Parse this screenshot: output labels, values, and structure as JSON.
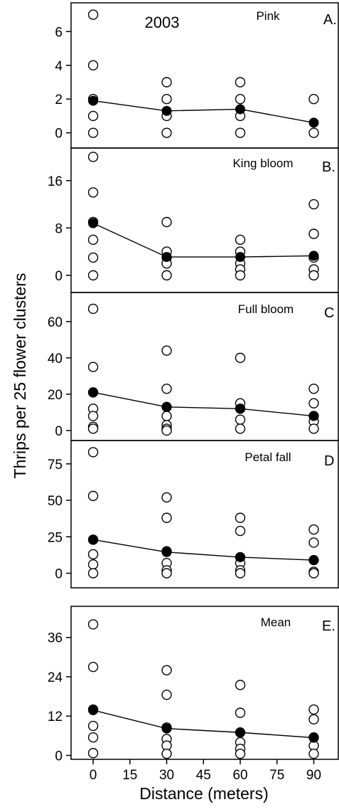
{
  "chart_data": {
    "type": "scatter",
    "year_label": "2003",
    "ylabel": "Thrips per 25 flower clusters",
    "xlabel": "Distance (meters)",
    "x_ticks": [
      0,
      15,
      30,
      45,
      60,
      75,
      90
    ],
    "xlim": [
      -9,
      100
    ],
    "panels": [
      {
        "title": "Pink",
        "letter": "A.",
        "ylim": [
          -0.9,
          7.7
        ],
        "y_ticks": [
          0,
          2,
          4,
          6
        ],
        "observations": [
          {
            "x": 0,
            "y": 7
          },
          {
            "x": 0,
            "y": 4
          },
          {
            "x": 0,
            "y": 2
          },
          {
            "x": 0,
            "y": 1
          },
          {
            "x": 0,
            "y": 0
          },
          {
            "x": 30,
            "y": 3
          },
          {
            "x": 30,
            "y": 2
          },
          {
            "x": 30,
            "y": 1
          },
          {
            "x": 30,
            "y": 0
          },
          {
            "x": 60,
            "y": 3
          },
          {
            "x": 60,
            "y": 2
          },
          {
            "x": 60,
            "y": 1
          },
          {
            "x": 60,
            "y": 0
          },
          {
            "x": 90,
            "y": 2
          },
          {
            "x": 90,
            "y": 0
          }
        ],
        "mean": {
          "x": [
            0,
            30,
            60,
            90
          ],
          "y": [
            1.9,
            1.3,
            1.4,
            0.6
          ]
        }
      },
      {
        "title": "King bloom",
        "letter": "B.",
        "ylim": [
          -2.9,
          21.5
        ],
        "y_ticks": [
          0,
          8,
          16
        ],
        "observations": [
          {
            "x": 0,
            "y": 20
          },
          {
            "x": 0,
            "y": 14
          },
          {
            "x": 0,
            "y": 9
          },
          {
            "x": 0,
            "y": 6
          },
          {
            "x": 0,
            "y": 3
          },
          {
            "x": 0,
            "y": 0
          },
          {
            "x": 30,
            "y": 9
          },
          {
            "x": 30,
            "y": 4
          },
          {
            "x": 30,
            "y": 3
          },
          {
            "x": 30,
            "y": 2
          },
          {
            "x": 30,
            "y": 0
          },
          {
            "x": 60,
            "y": 6
          },
          {
            "x": 60,
            "y": 4
          },
          {
            "x": 60,
            "y": 2
          },
          {
            "x": 60,
            "y": 1
          },
          {
            "x": 60,
            "y": 0
          },
          {
            "x": 90,
            "y": 12
          },
          {
            "x": 90,
            "y": 7
          },
          {
            "x": 90,
            "y": 3
          },
          {
            "x": 90,
            "y": 1
          },
          {
            "x": 90,
            "y": 0
          }
        ],
        "mean": {
          "x": [
            0,
            30,
            60,
            90
          ],
          "y": [
            8.8,
            3.1,
            3.1,
            3.3
          ]
        }
      },
      {
        "title": "Full bloom",
        "letter": "C",
        "ylim": [
          -5.5,
          76
        ],
        "y_ticks": [
          0,
          20,
          40,
          60
        ],
        "observations": [
          {
            "x": 0,
            "y": 67
          },
          {
            "x": 0,
            "y": 35
          },
          {
            "x": 0,
            "y": 21
          },
          {
            "x": 0,
            "y": 12
          },
          {
            "x": 0,
            "y": 8
          },
          {
            "x": 0,
            "y": 2
          },
          {
            "x": 0,
            "y": 1
          },
          {
            "x": 30,
            "y": 44
          },
          {
            "x": 30,
            "y": 23
          },
          {
            "x": 30,
            "y": 13
          },
          {
            "x": 30,
            "y": 8
          },
          {
            "x": 30,
            "y": 3
          },
          {
            "x": 30,
            "y": 1
          },
          {
            "x": 30,
            "y": 0
          },
          {
            "x": 60,
            "y": 40
          },
          {
            "x": 60,
            "y": 15
          },
          {
            "x": 60,
            "y": 12
          },
          {
            "x": 60,
            "y": 6
          },
          {
            "x": 60,
            "y": 1
          },
          {
            "x": 90,
            "y": 23
          },
          {
            "x": 90,
            "y": 15
          },
          {
            "x": 90,
            "y": 8
          },
          {
            "x": 90,
            "y": 5
          },
          {
            "x": 90,
            "y": 1
          }
        ],
        "mean": {
          "x": [
            0,
            30,
            60,
            90
          ],
          "y": [
            21,
            13,
            12,
            8
          ]
        }
      },
      {
        "title": "Petal fall",
        "letter": "D",
        "ylim": [
          -10,
          91
        ],
        "y_ticks": [
          0,
          25,
          50,
          75
        ],
        "observations": [
          {
            "x": 0,
            "y": 83
          },
          {
            "x": 0,
            "y": 53
          },
          {
            "x": 0,
            "y": 23
          },
          {
            "x": 0,
            "y": 13
          },
          {
            "x": 0,
            "y": 6
          },
          {
            "x": 0,
            "y": 0
          },
          {
            "x": 30,
            "y": 52
          },
          {
            "x": 30,
            "y": 38
          },
          {
            "x": 30,
            "y": 15
          },
          {
            "x": 30,
            "y": 7
          },
          {
            "x": 30,
            "y": 2
          },
          {
            "x": 30,
            "y": 0
          },
          {
            "x": 60,
            "y": 38
          },
          {
            "x": 60,
            "y": 29
          },
          {
            "x": 60,
            "y": 11
          },
          {
            "x": 60,
            "y": 7
          },
          {
            "x": 60,
            "y": 2
          },
          {
            "x": 60,
            "y": 0
          },
          {
            "x": 90,
            "y": 30
          },
          {
            "x": 90,
            "y": 21
          },
          {
            "x": 90,
            "y": 9
          },
          {
            "x": 90,
            "y": 1
          },
          {
            "x": 90,
            "y": 0
          }
        ],
        "mean": {
          "x": [
            0,
            30,
            60,
            90
          ],
          "y": [
            23,
            14.5,
            11,
            9
          ]
        }
      },
      {
        "title": "Mean",
        "letter": "E.",
        "ylim": [
          -1.2,
          45.5
        ],
        "y_ticks": [
          0,
          12,
          24,
          36
        ],
        "observations": [
          {
            "x": 0,
            "y": 40
          },
          {
            "x": 0,
            "y": 27
          },
          {
            "x": 0,
            "y": 14
          },
          {
            "x": 0,
            "y": 9
          },
          {
            "x": 0,
            "y": 5.5
          },
          {
            "x": 0,
            "y": 0.7
          },
          {
            "x": 30,
            "y": 26
          },
          {
            "x": 30,
            "y": 18.5
          },
          {
            "x": 30,
            "y": 8.5
          },
          {
            "x": 30,
            "y": 5
          },
          {
            "x": 30,
            "y": 3
          },
          {
            "x": 30,
            "y": 0.5
          },
          {
            "x": 60,
            "y": 21.5
          },
          {
            "x": 60,
            "y": 13
          },
          {
            "x": 60,
            "y": 7
          },
          {
            "x": 60,
            "y": 4
          },
          {
            "x": 60,
            "y": 2
          },
          {
            "x": 60,
            "y": 0.5
          },
          {
            "x": 90,
            "y": 14
          },
          {
            "x": 90,
            "y": 11
          },
          {
            "x": 90,
            "y": 5.5
          },
          {
            "x": 90,
            "y": 3
          },
          {
            "x": 90,
            "y": 0.5
          }
        ],
        "mean": {
          "x": [
            0,
            30,
            60,
            90
          ],
          "y": [
            13.8,
            8.2,
            7,
            5.4
          ]
        }
      }
    ]
  }
}
